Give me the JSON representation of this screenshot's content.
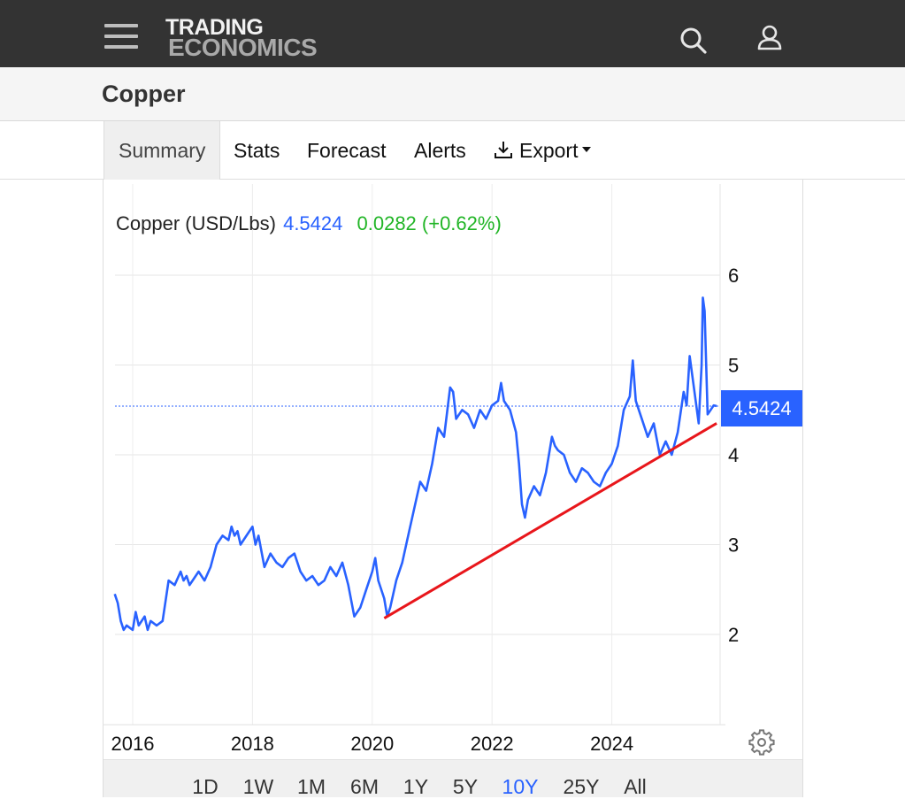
{
  "brand": {
    "line1": "TRADING",
    "line2": "ECONOMICS"
  },
  "header": {
    "menu_icon": "hamburger-menu-icon",
    "search_icon": "search-icon",
    "user_icon": "user-icon"
  },
  "page": {
    "title": "Copper"
  },
  "tabs": [
    {
      "label": "Summary",
      "active": true
    },
    {
      "label": "Stats"
    },
    {
      "label": "Forecast"
    },
    {
      "label": "Alerts"
    },
    {
      "label": "Export",
      "icon": "download-icon",
      "dropdown": true
    }
  ],
  "chart_header": {
    "name": "Copper (USD/Lbs)",
    "price": "4.5424",
    "change": "0.0282 (+0.62%)"
  },
  "ranges": [
    {
      "label": "1D"
    },
    {
      "label": "1W"
    },
    {
      "label": "1M"
    },
    {
      "label": "6M"
    },
    {
      "label": "1Y"
    },
    {
      "label": "5Y"
    },
    {
      "label": "10Y",
      "active": true
    },
    {
      "label": "25Y"
    },
    {
      "label": "All"
    }
  ],
  "colors": {
    "series": "#2962ff",
    "trendline": "#e8161b",
    "change_positive": "#21b526",
    "header_bg": "#333333"
  },
  "chart_data": {
    "type": "line",
    "y_ticks": [
      "2",
      "3",
      "4",
      "5",
      "6"
    ],
    "x_ticks": [
      "2016",
      "2018",
      "2020",
      "2022",
      "2024"
    ],
    "xlim": [
      2015.7,
      2025.9
    ],
    "ylim": [
      1.0,
      7.0
    ],
    "grid": true,
    "current_value_label": "4.5424",
    "series": [
      {
        "x": [
          2015.7,
          2015.75,
          2015.8,
          2015.85,
          2015.9,
          2016.0,
          2016.05,
          2016.1,
          2016.2,
          2016.25,
          2016.3,
          2016.4,
          2016.5,
          2016.6,
          2016.7,
          2016.8,
          2016.85,
          2016.9,
          2016.95,
          2017.0,
          2017.1,
          2017.2,
          2017.3,
          2017.4,
          2017.5,
          2017.6,
          2017.65,
          2017.7,
          2017.75,
          2017.8,
          2017.9,
          2018.0,
          2018.05,
          2018.1,
          2018.2,
          2018.3,
          2018.4,
          2018.5,
          2018.6,
          2018.7,
          2018.8,
          2018.9,
          2019.0,
          2019.1,
          2019.2,
          2019.3,
          2019.4,
          2019.5,
          2019.6,
          2019.7,
          2019.8,
          2019.9,
          2020.0,
          2020.05,
          2020.1,
          2020.2,
          2020.25,
          2020.3,
          2020.4,
          2020.5,
          2020.6,
          2020.7,
          2020.8,
          2020.9,
          2021.0,
          2021.1,
          2021.2,
          2021.3,
          2021.35,
          2021.4,
          2021.5,
          2021.6,
          2021.7,
          2021.8,
          2021.9,
          2022.0,
          2022.1,
          2022.15,
          2022.2,
          2022.3,
          2022.4,
          2022.45,
          2022.5,
          2022.55,
          2022.6,
          2022.7,
          2022.8,
          2022.9,
          2023.0,
          2023.05,
          2023.1,
          2023.2,
          2023.3,
          2023.4,
          2023.5,
          2023.6,
          2023.7,
          2023.8,
          2023.9,
          2024.0,
          2024.1,
          2024.2,
          2024.3,
          2024.35,
          2024.4,
          2024.5,
          2024.6,
          2024.7,
          2024.8,
          2024.9,
          2025.0,
          2025.1,
          2025.2,
          2025.25,
          2025.3,
          2025.4,
          2025.45,
          2025.5,
          2025.52,
          2025.55,
          2025.6,
          2025.65,
          2025.7,
          2025.75
        ],
        "values": [
          2.45,
          2.35,
          2.15,
          2.05,
          2.1,
          2.05,
          2.25,
          2.1,
          2.2,
          2.05,
          2.15,
          2.1,
          2.15,
          2.6,
          2.55,
          2.7,
          2.6,
          2.65,
          2.55,
          2.6,
          2.7,
          2.6,
          2.75,
          3.0,
          3.1,
          3.05,
          3.2,
          3.1,
          3.15,
          3.0,
          3.1,
          3.2,
          3.0,
          3.1,
          2.75,
          2.9,
          2.8,
          2.75,
          2.85,
          2.9,
          2.7,
          2.6,
          2.65,
          2.55,
          2.6,
          2.75,
          2.65,
          2.8,
          2.55,
          2.2,
          2.3,
          2.5,
          2.7,
          2.85,
          2.6,
          2.4,
          2.2,
          2.3,
          2.6,
          2.8,
          3.1,
          3.4,
          3.7,
          3.6,
          3.9,
          4.3,
          4.2,
          4.75,
          4.7,
          4.4,
          4.5,
          4.45,
          4.3,
          4.5,
          4.4,
          4.55,
          4.6,
          4.8,
          4.6,
          4.5,
          4.25,
          3.9,
          3.45,
          3.3,
          3.5,
          3.65,
          3.55,
          3.8,
          4.2,
          4.1,
          4.05,
          4.0,
          3.8,
          3.7,
          3.85,
          3.8,
          3.7,
          3.65,
          3.8,
          3.9,
          4.1,
          4.5,
          4.65,
          5.05,
          4.6,
          4.4,
          4.2,
          4.35,
          4.0,
          4.15,
          4.0,
          4.25,
          4.7,
          4.55,
          5.1,
          4.6,
          4.35,
          5.0,
          5.75,
          5.6,
          4.45,
          4.5,
          4.55,
          4.5424
        ]
      },
      {
        "x": [
          2020.2,
          2025.75
        ],
        "values": [
          2.18,
          4.35
        ]
      }
    ]
  }
}
